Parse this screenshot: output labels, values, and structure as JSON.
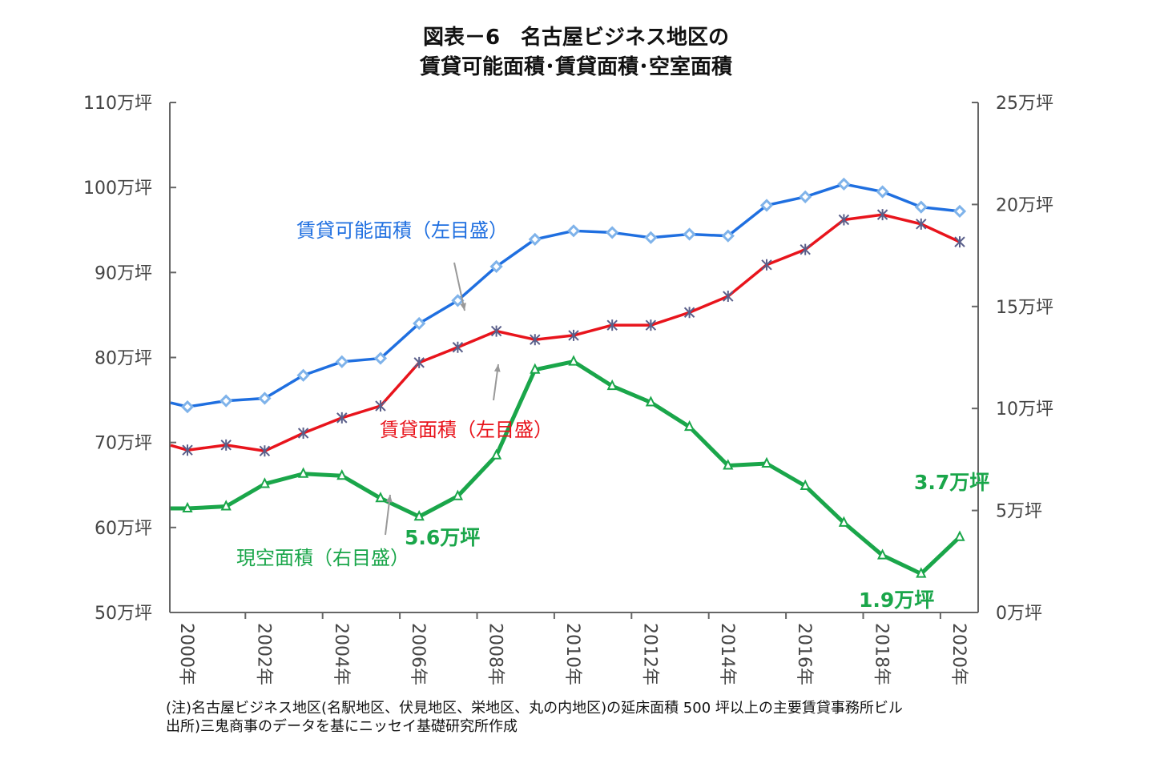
{
  "title_line1": "図表－6　名古屋ビジネス地区の",
  "title_line2": "賃貸可能面積･賃貸面積･空室面積",
  "notes": [
    "(注)名古屋ビジネス地区(名駅地区、伏見地区、栄地区、丸の内地区)の延床面積 500 坪以上の主要賃貸事務所ビル",
    "出所)三鬼商事のデータを基にニッセイ基礎研究所作成"
  ],
  "chart_data": {
    "type": "line",
    "title": "図表－6　名古屋ビジネス地区の 賃貸可能面積･賃貸面積･空室面積",
    "x": [
      "2000年",
      "2001年",
      "2002年",
      "2003年",
      "2004年",
      "2005年",
      "2006年",
      "2007年",
      "2008年",
      "2009年",
      "2010年",
      "2011年",
      "2012年",
      "2013年",
      "2014年",
      "2015年",
      "2016年",
      "2017年",
      "2018年",
      "2019年",
      "2020年"
    ],
    "x_tick_labels": [
      "2000年",
      "2002年",
      "2004年",
      "2006年",
      "2008年",
      "2010年",
      "2012年",
      "2014年",
      "2016年",
      "2018年",
      "2020年"
    ],
    "y_left": {
      "range": [
        50,
        110
      ],
      "ticks": [
        "50万坪",
        "60万坪",
        "70万坪",
        "80万坪",
        "90万坪",
        "100万坪",
        "110万坪"
      ]
    },
    "y_right": {
      "range": [
        0,
        25
      ],
      "ticks": [
        "0万坪",
        "5万坪",
        "10万坪",
        "15万坪",
        "20万坪",
        "25万坪"
      ]
    },
    "grid": false,
    "series": [
      {
        "name": "賃貸可能面積（左目盛）",
        "axis": "left",
        "color": "#1f6fe0",
        "marker": "diamond",
        "values": [
          74.2,
          74.9,
          75.2,
          77.9,
          79.5,
          79.9,
          84.0,
          86.7,
          90.7,
          93.9,
          94.9,
          94.7,
          94.1,
          94.5,
          94.3,
          97.9,
          98.9,
          100.4,
          99.5,
          97.7,
          97.2
        ]
      },
      {
        "name": "賃貸面積（左目盛）",
        "axis": "left",
        "color": "#e8141c",
        "marker": "x",
        "values": [
          69.1,
          69.7,
          69.0,
          71.1,
          72.9,
          74.3,
          79.4,
          81.2,
          83.1,
          82.1,
          82.6,
          83.8,
          83.8,
          85.3,
          87.2,
          90.9,
          92.7,
          96.2,
          96.8,
          95.7,
          93.6
        ]
      },
      {
        "name": "現空面積（右目盛）",
        "axis": "right",
        "color": "#1aa64a",
        "marker": "triangle",
        "values": [
          5.1,
          5.2,
          6.3,
          6.8,
          6.7,
          5.6,
          4.7,
          5.7,
          7.7,
          11.9,
          12.3,
          11.1,
          10.3,
          9.1,
          7.2,
          7.3,
          6.2,
          4.4,
          2.8,
          1.9,
          3.7
        ]
      }
    ],
    "annotations": [
      {
        "text": "5.6万坪",
        "series": 2,
        "x": "2005年"
      },
      {
        "text": "1.9万坪",
        "series": 2,
        "x": "2019年"
      },
      {
        "text": "3.7万坪",
        "series": 2,
        "x": "2020年"
      }
    ]
  }
}
